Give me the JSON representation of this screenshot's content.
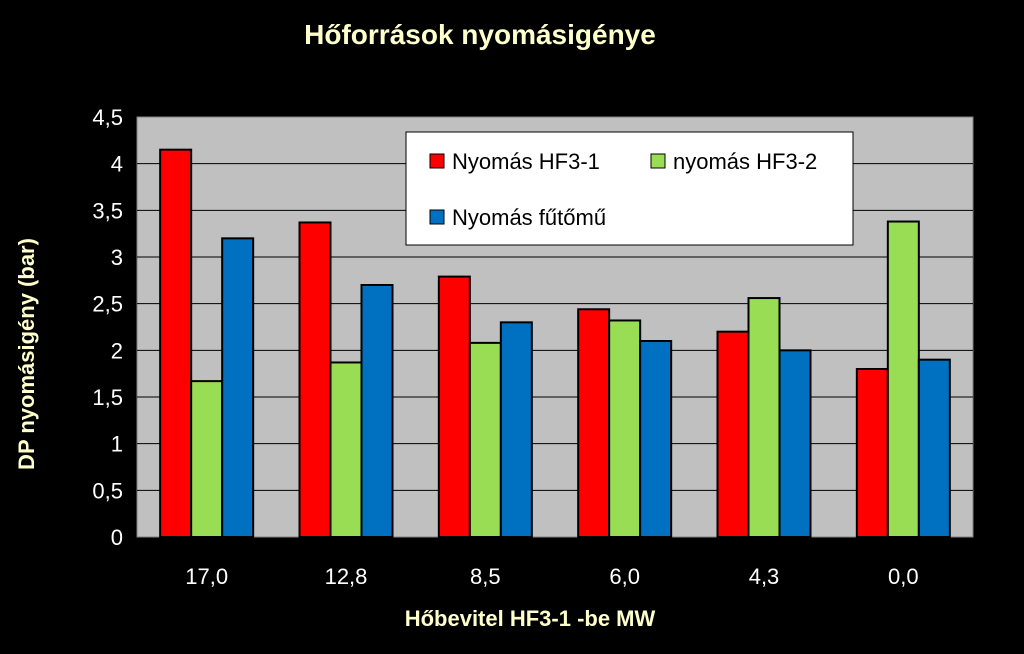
{
  "chart_data": {
    "type": "bar",
    "title": "Hőforrások nyomásigénye",
    "xlabel": "Hőbevitel HF3-1 -be  MW",
    "ylabel": "DP nyomásigény (bar)",
    "categories": [
      "17,0",
      "12,8",
      "8,5",
      "6,0",
      "4,3",
      "0,0"
    ],
    "ylim": [
      0,
      4.5
    ],
    "yticks": [
      0,
      0.5,
      1,
      1.5,
      2,
      2.5,
      3,
      3.5,
      4,
      4.5
    ],
    "ytick_labels": [
      "0",
      "0,5",
      "1",
      "1,5",
      "2",
      "2,5",
      "3",
      "3,5",
      "4",
      "4,5"
    ],
    "grid": true,
    "legend_position": "top-right",
    "series": [
      {
        "name": "Nyomás HF3-1",
        "color": "#ff0000",
        "values": [
          4.15,
          3.37,
          2.79,
          2.44,
          2.2,
          1.8
        ]
      },
      {
        "name": "nyomás HF3-2",
        "color": "#99dd55",
        "values": [
          1.67,
          1.87,
          2.08,
          2.32,
          2.56,
          3.38
        ]
      },
      {
        "name": "Nyomás fűtőmű",
        "color": "#0070c0",
        "values": [
          3.2,
          2.7,
          2.3,
          2.1,
          2.0,
          1.9
        ]
      }
    ],
    "colors": {
      "background": "#000000",
      "plot_background": "#c0c0c0",
      "title": "#ffffcc",
      "tick_text": "#ffffff"
    }
  }
}
